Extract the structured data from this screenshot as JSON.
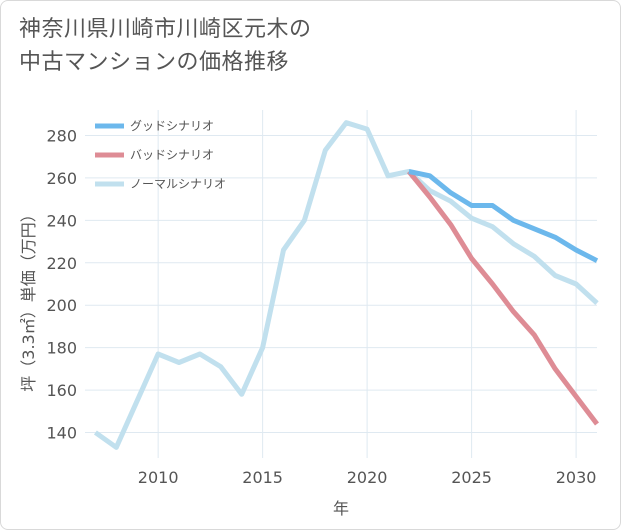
{
  "page": {
    "title_line1": "神奈川県川崎市川崎区元木の",
    "title_line2": "中古マンションの価格推移"
  },
  "chart_data": {
    "type": "line",
    "title": "神奈川県川崎市川崎区元木の中古マンションの価格推移",
    "xlabel": "年",
    "ylabel": "坪（3.3㎡）単価（万円）",
    "xlim": [
      2006.5,
      2031
    ],
    "ylim": [
      128,
      292
    ],
    "x_ticks": [
      2010,
      2015,
      2020,
      2025,
      2030
    ],
    "y_ticks": [
      140,
      160,
      180,
      200,
      220,
      240,
      260,
      280
    ],
    "legend_position": "top-left",
    "series": [
      {
        "name": "グッドシナリオ",
        "color": "#6cb8ec",
        "x": [
          2022,
          2023,
          2024,
          2025,
          2026,
          2027,
          2028,
          2029,
          2030,
          2031
        ],
        "values": [
          263,
          261,
          253,
          247,
          247,
          240,
          236,
          232,
          226,
          221
        ]
      },
      {
        "name": "バッドシナリオ",
        "color": "#de8c95",
        "x": [
          2022,
          2023,
          2024,
          2025,
          2026,
          2027,
          2028,
          2029,
          2030,
          2031
        ],
        "values": [
          263,
          251,
          238,
          222,
          210,
          197,
          186,
          170,
          157,
          144
        ]
      },
      {
        "name": "ノーマルシナリオ",
        "color": "#c1e0ee",
        "x": [
          2007,
          2008,
          2009,
          2010,
          2011,
          2012,
          2013,
          2014,
          2015,
          2016,
          2017,
          2018,
          2019,
          2020,
          2021,
          2022,
          2023,
          2024,
          2025,
          2026,
          2027,
          2028,
          2029,
          2030,
          2031
        ],
        "values": [
          140,
          133,
          155,
          177,
          173,
          177,
          171,
          158,
          180,
          226,
          240,
          273,
          286,
          283,
          261,
          263,
          254,
          249,
          241,
          237,
          229,
          223,
          214,
          210,
          201
        ]
      }
    ]
  }
}
